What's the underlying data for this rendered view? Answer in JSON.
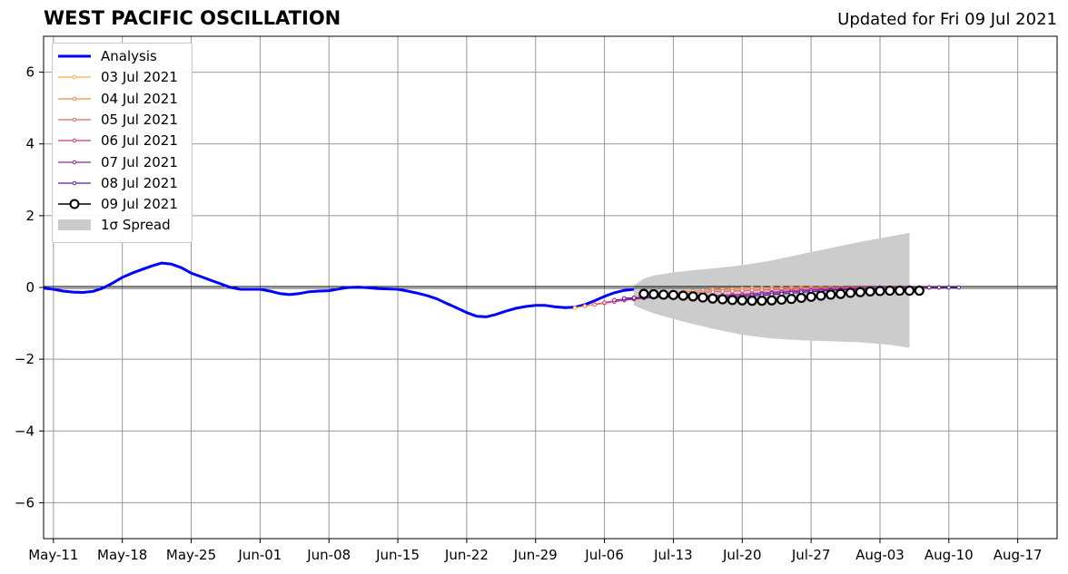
{
  "header": {
    "title": "WEST PACIFIC OSCILLATION",
    "updated": "Updated for Fri 09 Jul 2021"
  },
  "chart_data": {
    "type": "line",
    "x_ticks": [
      "May-11",
      "May-18",
      "May-25",
      "Jun-01",
      "Jun-08",
      "Jun-15",
      "Jun-22",
      "Jun-29",
      "Jul-06",
      "Jul-13",
      "Jul-20",
      "Jul-27",
      "Aug-03",
      "Aug-10",
      "Aug-17"
    ],
    "y_ticks": [
      "6",
      "4",
      "2",
      "0",
      "−2",
      "−4",
      "−6"
    ],
    "y_tick_values": [
      6,
      4,
      2,
      0,
      -2,
      -4,
      -6
    ],
    "xlim": [
      "2021-05-10",
      "2021-08-21"
    ],
    "ylim": [
      -7,
      7
    ],
    "grid": true,
    "legend_position": "upper-left",
    "legend": [
      {
        "label": "Analysis",
        "color": "#0000ff",
        "style": "thick-line"
      },
      {
        "label": "03 Jul 2021",
        "color": "#f5b041",
        "style": "line-dot"
      },
      {
        "label": "04 Jul 2021",
        "color": "#f08a48",
        "style": "line-dot"
      },
      {
        "label": "05 Jul 2021",
        "color": "#e06470",
        "style": "line-dot"
      },
      {
        "label": "06 Jul 2021",
        "color": "#c23c8c",
        "style": "line-dot"
      },
      {
        "label": "07 Jul 2021",
        "color": "#9024a8",
        "style": "line-dot"
      },
      {
        "label": "08 Jul 2021",
        "color": "#5a1a9c",
        "style": "line-dot"
      },
      {
        "label": "09 Jul 2021",
        "color": "#000000",
        "style": "open-circle"
      },
      {
        "label": "1σ Spread",
        "color": "#cccccc",
        "style": "patch"
      }
    ],
    "analysis": {
      "x": [
        "2021-05-10",
        "2021-05-11",
        "2021-05-12",
        "2021-05-13",
        "2021-05-14",
        "2021-05-15",
        "2021-05-16",
        "2021-05-17",
        "2021-05-18",
        "2021-05-19",
        "2021-05-20",
        "2021-05-21",
        "2021-05-22",
        "2021-05-23",
        "2021-05-24",
        "2021-05-25",
        "2021-05-26",
        "2021-05-27",
        "2021-05-28",
        "2021-05-29",
        "2021-05-30",
        "2021-05-31",
        "2021-06-01",
        "2021-06-02",
        "2021-06-03",
        "2021-06-04",
        "2021-06-05",
        "2021-06-06",
        "2021-06-07",
        "2021-06-08",
        "2021-06-09",
        "2021-06-10",
        "2021-06-11",
        "2021-06-12",
        "2021-06-13",
        "2021-06-14",
        "2021-06-15",
        "2021-06-16",
        "2021-06-17",
        "2021-06-18",
        "2021-06-19",
        "2021-06-20",
        "2021-06-21",
        "2021-06-22",
        "2021-06-23",
        "2021-06-24",
        "2021-06-25",
        "2021-06-26",
        "2021-06-27",
        "2021-06-28",
        "2021-06-29",
        "2021-06-30",
        "2021-07-01",
        "2021-07-02",
        "2021-07-03",
        "2021-07-04",
        "2021-07-05",
        "2021-07-06",
        "2021-07-07",
        "2021-07-08",
        "2021-07-09"
      ],
      "y": [
        -0.02,
        -0.05,
        -0.1,
        -0.13,
        -0.14,
        -0.11,
        -0.02,
        0.12,
        0.28,
        0.4,
        0.5,
        0.6,
        0.68,
        0.65,
        0.55,
        0.4,
        0.3,
        0.2,
        0.1,
        0.0,
        -0.05,
        -0.05,
        -0.05,
        -0.1,
        -0.17,
        -0.2,
        -0.17,
        -0.12,
        -0.1,
        -0.09,
        -0.04,
        0.0,
        0.01,
        -0.01,
        -0.03,
        -0.04,
        -0.05,
        -0.1,
        -0.16,
        -0.23,
        -0.32,
        -0.45,
        -0.57,
        -0.7,
        -0.8,
        -0.82,
        -0.75,
        -0.66,
        -0.58,
        -0.53,
        -0.5,
        -0.5,
        -0.54,
        -0.56,
        -0.55,
        -0.48,
        -0.37,
        -0.25,
        -0.15,
        -0.08,
        -0.05
      ]
    },
    "forecasts": [
      {
        "name": "03 Jul 2021",
        "start": "2021-07-03",
        "color": "#f5b041",
        "y": [
          -0.57,
          -0.52,
          -0.47,
          -0.42,
          -0.37,
          -0.32,
          -0.28,
          -0.24,
          -0.21,
          -0.18,
          -0.15,
          -0.12,
          -0.1,
          -0.08,
          -0.06,
          -0.05,
          -0.04,
          -0.03,
          -0.02,
          -0.02,
          -0.01,
          -0.01,
          0.0,
          0.0,
          0.0,
          0.0,
          0.0,
          0.0,
          0.0,
          0.0,
          0.0,
          0.0,
          0.0,
          0.0,
          0.0
        ]
      },
      {
        "name": "04 Jul 2021",
        "start": "2021-07-04",
        "color": "#f08a48",
        "y": [
          -0.52,
          -0.47,
          -0.42,
          -0.37,
          -0.32,
          -0.28,
          -0.24,
          -0.2,
          -0.17,
          -0.14,
          -0.12,
          -0.1,
          -0.08,
          -0.07,
          -0.06,
          -0.05,
          -0.04,
          -0.03,
          -0.03,
          -0.02,
          -0.02,
          -0.01,
          -0.01,
          0.0,
          0.0,
          0.0,
          0.0,
          0.0,
          0.0,
          0.0,
          0.0,
          0.0,
          0.0,
          0.0,
          0.0
        ]
      },
      {
        "name": "05 Jul 2021",
        "start": "2021-07-05",
        "color": "#e06470",
        "y": [
          -0.48,
          -0.44,
          -0.4,
          -0.36,
          -0.32,
          -0.29,
          -0.26,
          -0.23,
          -0.2,
          -0.18,
          -0.16,
          -0.14,
          -0.12,
          -0.11,
          -0.1,
          -0.09,
          -0.08,
          -0.07,
          -0.06,
          -0.05,
          -0.04,
          -0.03,
          -0.02,
          -0.02,
          -0.01,
          -0.01,
          0.0,
          0.0,
          0.0,
          0.0,
          0.0,
          0.0,
          0.0,
          0.0,
          0.0
        ]
      },
      {
        "name": "06 Jul 2021",
        "start": "2021-07-06",
        "color": "#c23c8c",
        "y": [
          -0.42,
          -0.39,
          -0.36,
          -0.33,
          -0.3,
          -0.28,
          -0.27,
          -0.26,
          -0.25,
          -0.24,
          -0.23,
          -0.22,
          -0.21,
          -0.2,
          -0.19,
          -0.17,
          -0.15,
          -0.13,
          -0.11,
          -0.09,
          -0.07,
          -0.06,
          -0.05,
          -0.04,
          -0.03,
          -0.02,
          -0.01,
          -0.01,
          0.0,
          0.0,
          0.0,
          0.0,
          0.0,
          0.0,
          0.0
        ]
      },
      {
        "name": "07 Jul 2021",
        "start": "2021-07-07",
        "color": "#9024a8",
        "y": [
          -0.35,
          -0.33,
          -0.31,
          -0.29,
          -0.27,
          -0.26,
          -0.26,
          -0.26,
          -0.26,
          -0.26,
          -0.25,
          -0.24,
          -0.23,
          -0.22,
          -0.2,
          -0.18,
          -0.16,
          -0.14,
          -0.12,
          -0.1,
          -0.08,
          -0.07,
          -0.06,
          -0.05,
          -0.04,
          -0.03,
          -0.02,
          -0.01,
          -0.01,
          0.0,
          0.0,
          0.0,
          0.0,
          0.0,
          0.0
        ]
      },
      {
        "name": "08 Jul 2021",
        "start": "2021-07-08",
        "color": "#5a1a9c",
        "y": [
          -0.3,
          -0.29,
          -0.28,
          -0.27,
          -0.27,
          -0.27,
          -0.28,
          -0.29,
          -0.29,
          -0.29,
          -0.28,
          -0.27,
          -0.26,
          -0.24,
          -0.22,
          -0.2,
          -0.18,
          -0.16,
          -0.14,
          -0.12,
          -0.1,
          -0.08,
          -0.07,
          -0.06,
          -0.05,
          -0.04,
          -0.03,
          -0.02,
          -0.01,
          -0.01,
          0.0,
          0.0,
          0.0,
          0.0,
          0.0
        ]
      },
      {
        "name": "09 Jul 2021",
        "start": "2021-07-10",
        "color": "#000000",
        "y": [
          -0.18,
          -0.19,
          -0.2,
          -0.21,
          -0.23,
          -0.25,
          -0.28,
          -0.31,
          -0.33,
          -0.35,
          -0.36,
          -0.37,
          -0.37,
          -0.36,
          -0.34,
          -0.32,
          -0.29,
          -0.26,
          -0.23,
          -0.2,
          -0.18,
          -0.15,
          -0.13,
          -0.11,
          -0.1,
          -0.09,
          -0.09,
          -0.09,
          -0.09
        ]
      }
    ],
    "spread": {
      "x": [
        "2021-07-09",
        "2021-07-10",
        "2021-07-11",
        "2021-07-13",
        "2021-07-15",
        "2021-07-17",
        "2021-07-20",
        "2021-07-23",
        "2021-07-26",
        "2021-07-29",
        "2021-08-01",
        "2021-08-04",
        "2021-08-06"
      ],
      "upper": [
        0.05,
        0.25,
        0.33,
        0.42,
        0.48,
        0.53,
        0.62,
        0.75,
        0.93,
        1.1,
        1.27,
        1.42,
        1.52
      ],
      "lower": [
        -0.5,
        -0.62,
        -0.72,
        -0.88,
        -1.02,
        -1.15,
        -1.32,
        -1.42,
        -1.47,
        -1.5,
        -1.53,
        -1.6,
        -1.68
      ]
    }
  }
}
